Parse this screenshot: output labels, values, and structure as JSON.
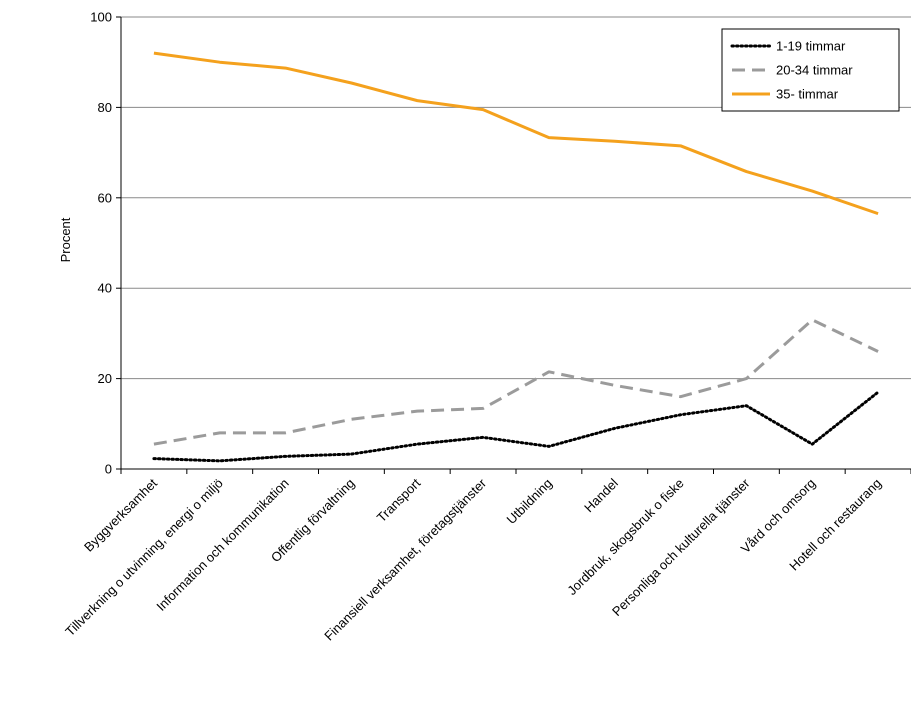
{
  "chart_data": {
    "type": "line",
    "title": "",
    "xlabel": "",
    "ylabel": "Procent",
    "ylim": [
      0,
      100
    ],
    "yticks": [
      0,
      20,
      40,
      60,
      80,
      100
    ],
    "grid": "horizontal",
    "legend_position": "top-right",
    "categories": [
      "Byggverksamhet",
      "Tillverkning o utvinning, energi o miljö",
      "Information och kommunikation",
      "Offentlig förvaltning",
      "Transport",
      "Finansiell verksamhet, företagstjänster",
      "Utbildning",
      "Handel",
      "Jordbruk, skogsbruk o fiske",
      "Personliga och kulturella tjänster",
      "Vård och omsorg",
      "Hotell och restaurang"
    ],
    "series": [
      {
        "name": "1-19 timmar",
        "color": "#000000",
        "style": "dotted",
        "values": [
          2.3,
          1.8,
          2.8,
          3.3,
          5.5,
          7.0,
          5.0,
          9.0,
          12.0,
          14.0,
          5.5,
          17.0
        ]
      },
      {
        "name": "20-34 timmar",
        "color": "#9b9b9b",
        "style": "dashed",
        "values": [
          5.5,
          8.0,
          8.0,
          11.0,
          12.8,
          13.4,
          21.5,
          18.5,
          16.0,
          20.0,
          33.0,
          26.0
        ]
      },
      {
        "name": "35- timmar",
        "color": "#f4a11d",
        "style": "solid",
        "values": [
          92.0,
          90.0,
          88.7,
          85.4,
          81.5,
          79.5,
          73.3,
          72.5,
          71.5,
          65.8,
          61.5,
          56.5
        ]
      }
    ]
  }
}
